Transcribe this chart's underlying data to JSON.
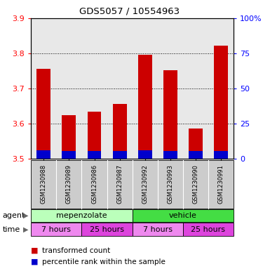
{
  "title": "GDS5057 / 10554963",
  "samples": [
    "GSM1230988",
    "GSM1230989",
    "GSM1230986",
    "GSM1230987",
    "GSM1230992",
    "GSM1230993",
    "GSM1230990",
    "GSM1230991"
  ],
  "red_tops": [
    3.755,
    3.623,
    3.633,
    3.655,
    3.795,
    3.752,
    3.585,
    3.822
  ],
  "blue_tops": [
    3.524,
    3.522,
    3.521,
    3.521,
    3.523,
    3.522,
    3.521,
    3.522
  ],
  "bar_bottom": 3.5,
  "ylim_left": [
    3.5,
    3.9
  ],
  "ylim_right": [
    0,
    100
  ],
  "yticks_left": [
    3.5,
    3.6,
    3.7,
    3.8,
    3.9
  ],
  "yticks_right": [
    0,
    25,
    50,
    75,
    100
  ],
  "yticklabels_right": [
    "0",
    "25",
    "50",
    "75",
    "100%"
  ],
  "red_color": "#cc0000",
  "blue_color": "#0000cc",
  "legend_red": "transformed count",
  "legend_blue": "percentile rank within the sample",
  "bar_width": 0.55,
  "plot_bg": "#e8e8e8",
  "agent_mep_color": "#bbffbb",
  "agent_veh_color": "#44dd44",
  "time_7h_color": "#ee88ee",
  "time_25h_color": "#dd44dd",
  "label_bg_color": "#cccccc",
  "grid_dotted_color": "#555555"
}
